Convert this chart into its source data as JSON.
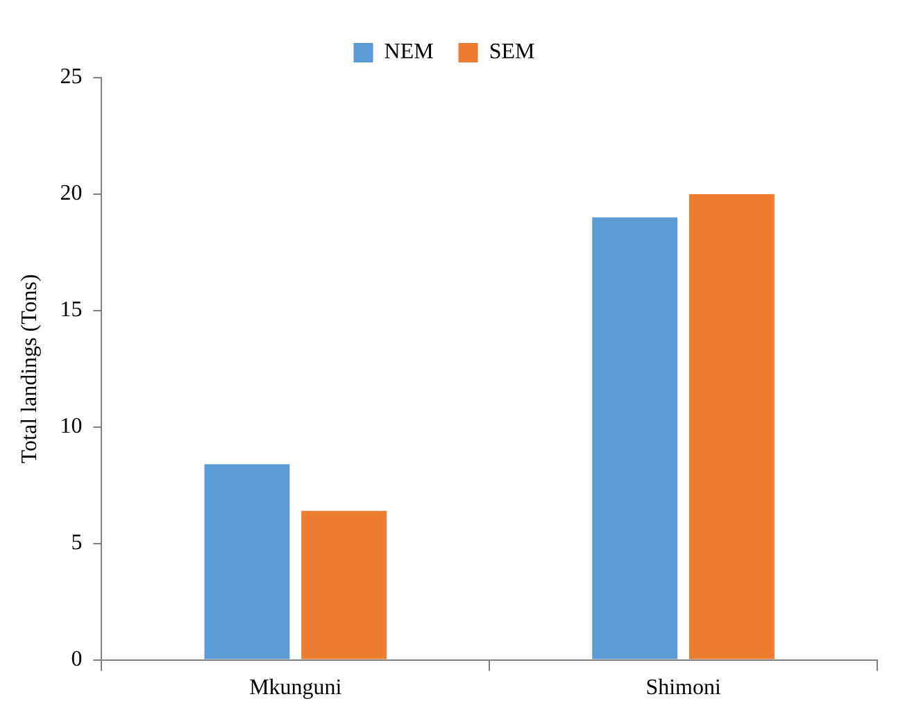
{
  "chart_data": {
    "type": "bar",
    "ylabel": "Total landings (Tons)",
    "categories": [
      "Mkunguni",
      "Shimoni"
    ],
    "series": [
      {
        "name": "NEM",
        "color": "#5b9bd5",
        "values": [
          8.4,
          19
        ]
      },
      {
        "name": "SEM",
        "color": "#ed7d31",
        "values": [
          6.4,
          20
        ]
      }
    ],
    "ylim": [
      0,
      25
    ],
    "yticks": [
      0,
      5,
      10,
      15,
      20,
      25
    ],
    "grid": false,
    "legend": "top"
  }
}
